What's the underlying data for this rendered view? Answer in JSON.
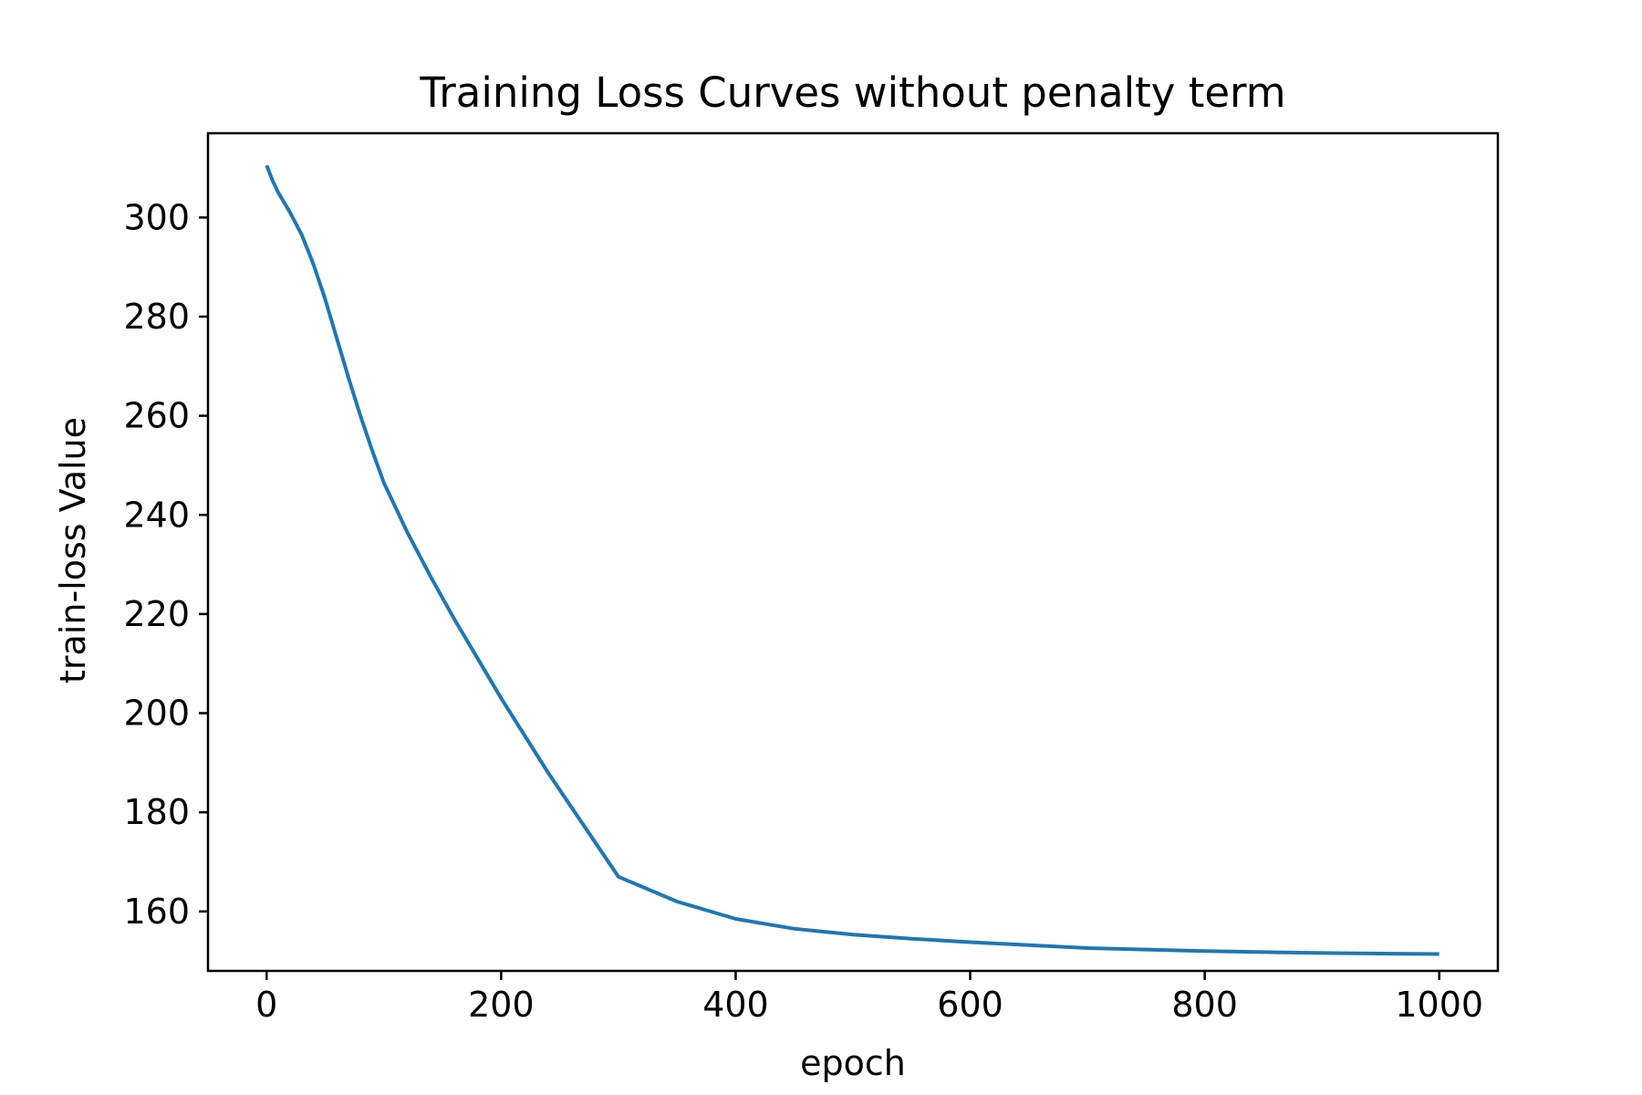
{
  "chart_data": {
    "type": "line",
    "title": "Training Loss Curves without penalty term",
    "xlabel": "epoch",
    "ylabel": "train-loss Value",
    "xlim": [
      -50,
      1050
    ],
    "ylim": [
      148,
      317
    ],
    "xticks": [
      0,
      200,
      400,
      600,
      800,
      1000
    ],
    "yticks": [
      160,
      180,
      200,
      220,
      240,
      260,
      280,
      300
    ],
    "grid": false,
    "legend": "none",
    "series": [
      {
        "color": "#1f77b4",
        "x": [
          0,
          5,
          10,
          20,
          30,
          40,
          50,
          60,
          70,
          80,
          90,
          100,
          120,
          140,
          160,
          180,
          200,
          220,
          240,
          260,
          280,
          300,
          350,
          400,
          450,
          500,
          550,
          600,
          650,
          700,
          750,
          800,
          850,
          900,
          950,
          1000
        ],
        "y": [
          310.5,
          307.5,
          305.0,
          301.0,
          296.5,
          290.5,
          283.5,
          275.5,
          267.5,
          260.0,
          253.0,
          246.5,
          236.5,
          227.5,
          219.0,
          211.0,
          203.0,
          195.5,
          188.0,
          181.0,
          174.0,
          167.0,
          162.0,
          158.5,
          156.5,
          155.3,
          154.5,
          153.8,
          153.2,
          152.6,
          152.3,
          152.0,
          151.8,
          151.6,
          151.5,
          151.4
        ]
      }
    ]
  }
}
